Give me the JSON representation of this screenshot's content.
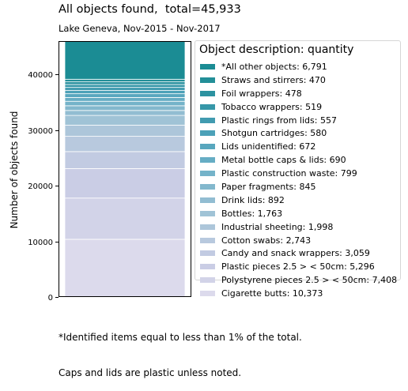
{
  "chart_data": {
    "type": "bar",
    "stacked": true,
    "title": "All objects found,  total=45,933",
    "subtitle": "Lake Geneva, Nov-2015 - Nov-2017",
    "ylabel": "Number of objects found",
    "xlabel": "",
    "ylim": [
      0,
      46000
    ],
    "yticks": [
      0,
      10000,
      20000,
      30000,
      40000
    ],
    "legend_title": "Object description: quantity",
    "legend_position": "right",
    "series": [
      {
        "label": "*All other objects: 6,791",
        "value": 6791,
        "color": "#1b8c94"
      },
      {
        "label": "Straws and stirrers: 470",
        "value": 470,
        "color": "#238f98"
      },
      {
        "label": "Foil wrappers: 478",
        "value": 478,
        "color": "#2c92a0"
      },
      {
        "label": "Tobacco wrappers: 519",
        "value": 519,
        "color": "#3697a8"
      },
      {
        "label": "Plastic rings from lids: 557",
        "value": 557,
        "color": "#419bb0"
      },
      {
        "label": "Shotgun cartridges: 580",
        "value": 580,
        "color": "#4ca1b8"
      },
      {
        "label": "Lids unidentified: 672",
        "value": 672,
        "color": "#58a7be"
      },
      {
        "label": "Metal bottle caps & lids: 690",
        "value": 690,
        "color": "#66adc4"
      },
      {
        "label": "Plastic construction waste: 799",
        "value": 799,
        "color": "#74b3c9"
      },
      {
        "label": "Paper fragments: 845",
        "value": 845,
        "color": "#83b8cd"
      },
      {
        "label": "Drink lids: 892",
        "value": 892,
        "color": "#92bdd2"
      },
      {
        "label": "Bottles: 1,763",
        "value": 1763,
        "color": "#a0c3d6"
      },
      {
        "label": "Industrial sheeting: 1,998",
        "value": 1998,
        "color": "#adc6da"
      },
      {
        "label": "Cotton swabs: 2,743",
        "value": 2743,
        "color": "#b8c9de"
      },
      {
        "label": "Candy and snack wrappers: 3,059",
        "value": 3059,
        "color": "#c2cbe2"
      },
      {
        "label": "Plastic pieces 2.5 > < 50cm: 5,296",
        "value": 5296,
        "color": "#cacde5"
      },
      {
        "label": "Polystyrene pieces 2.5 > < 50cm: 7,408",
        "value": 7408,
        "color": "#d2d3e8"
      },
      {
        "label": "Cigarette butts: 10,373",
        "value": 10373,
        "color": "#dcdaec"
      }
    ],
    "note_lines": [
      "*Identified items equal to less than 1% of the total.",
      "Caps and lids are plastic unless noted."
    ]
  }
}
